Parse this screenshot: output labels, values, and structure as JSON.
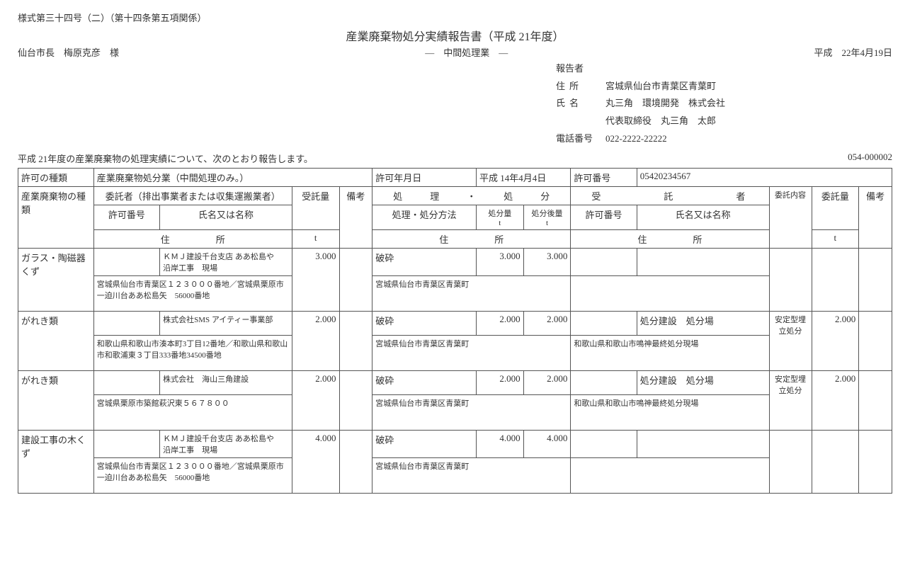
{
  "form_number": "様式第三十四号（二）（第十四条第五項関係）",
  "title": "産業廃棄物処分実績報告書（平成 21年度）",
  "addressee": "仙台市長　梅原克彦　様",
  "subtitle": "―　中間処理業　―",
  "report_date": "平成　22年4月19日",
  "reporter": {
    "heading": "報告者",
    "addr_label": "住所",
    "addr": "宮城県仙台市青葉区青葉町",
    "name_label": "氏名",
    "name": "丸三角　環境開発　株式会社",
    "rep_text": "代表取締役　丸三角　太郎",
    "tel_label": "電話番号",
    "tel": "022-2222-22222"
  },
  "intro_text": "平成 21年度の産業廃棄物の処理実績について、次のとおり報告します。",
  "doc_number": "054-000002",
  "permit": {
    "type_label": "許可の種類",
    "type_value": "産業廃棄物処分業（中間処理のみ。）",
    "date_label": "許可年月日",
    "date_value": "平成 14年4月4日",
    "number_label": "許可番号",
    "number_value": "05420234567"
  },
  "headers": {
    "waste_type": "産業廃棄物の種類",
    "consignor": "委託者（排出事業者または収集運搬業者）",
    "processing": "処　　　理　　　・　　　処　　　分",
    "consignee": "受　　　　　託　　　　　者",
    "permit_no": "許可番号",
    "name_or_title": "氏名又は名称",
    "received_qty": "受託量",
    "remarks": "備考",
    "address_label": "住　　　　　所",
    "method": "処理・処分方法",
    "proc_qty": "処分量",
    "after_qty": "処分後量",
    "consign_content": "委託内容",
    "consign_qty": "委託量",
    "unit_t": "t"
  },
  "rows": [
    {
      "waste": "ガラス・陶磁器くず",
      "consignor_name": "ＫＭＪ建設千台支店 ああ松島や　沿岸工事　現場",
      "consignor_addr": "宮城県仙台市青葉区１２３０００番地／宮城県栗原市一迫川台ああ松島矢　56000番地",
      "received": "3.000",
      "method": "破砕",
      "proc_addr": "宮城県仙台市青葉区青葉町",
      "proc_qty": "3.000",
      "after_qty": "3.000",
      "consignee_name": "",
      "consignee_addr": "",
      "consign_content": "",
      "consign_qty": ""
    },
    {
      "waste": "がれき類",
      "consignor_name": "株式会社SMS アイティー事業部",
      "consignor_addr": "和歌山県和歌山市湊本町3丁目12番地／和歌山県和歌山市和歌浦東３丁目333番地34500番地",
      "received": "2.000",
      "method": "破砕",
      "proc_addr": "宮城県仙台市青葉区青葉町",
      "proc_qty": "2.000",
      "after_qty": "2.000",
      "consignee_name": "処分建設　処分場",
      "consignee_addr": "和歌山県和歌山市鳴神最終処分現場",
      "consign_content": "安定型埋立処分",
      "consign_qty": "2.000"
    },
    {
      "waste": "がれき類",
      "consignor_name": "株式会社　海山三角建設",
      "consignor_addr": "宮城県栗原市築館萩沢東５６７８００",
      "received": "2.000",
      "method": "破砕",
      "proc_addr": "宮城県仙台市青葉区青葉町",
      "proc_qty": "2.000",
      "after_qty": "2.000",
      "consignee_name": "処分建設　処分場",
      "consignee_addr": "和歌山県和歌山市鳴神最終処分現場",
      "consign_content": "安定型埋立処分",
      "consign_qty": "2.000"
    },
    {
      "waste": "建設工事の木くず",
      "consignor_name": "ＫＭＪ建設千台支店 ああ松島や　沿岸工事　現場",
      "consignor_addr": "宮城県仙台市青葉区１２３０００番地／宮城県栗原市一迫川台ああ松島矢　56000番地",
      "received": "4.000",
      "method": "破砕",
      "proc_addr": "宮城県仙台市青葉区青葉町",
      "proc_qty": "4.000",
      "after_qty": "4.000",
      "consignee_name": "",
      "consignee_addr": "",
      "consign_content": "",
      "consign_qty": ""
    }
  ]
}
